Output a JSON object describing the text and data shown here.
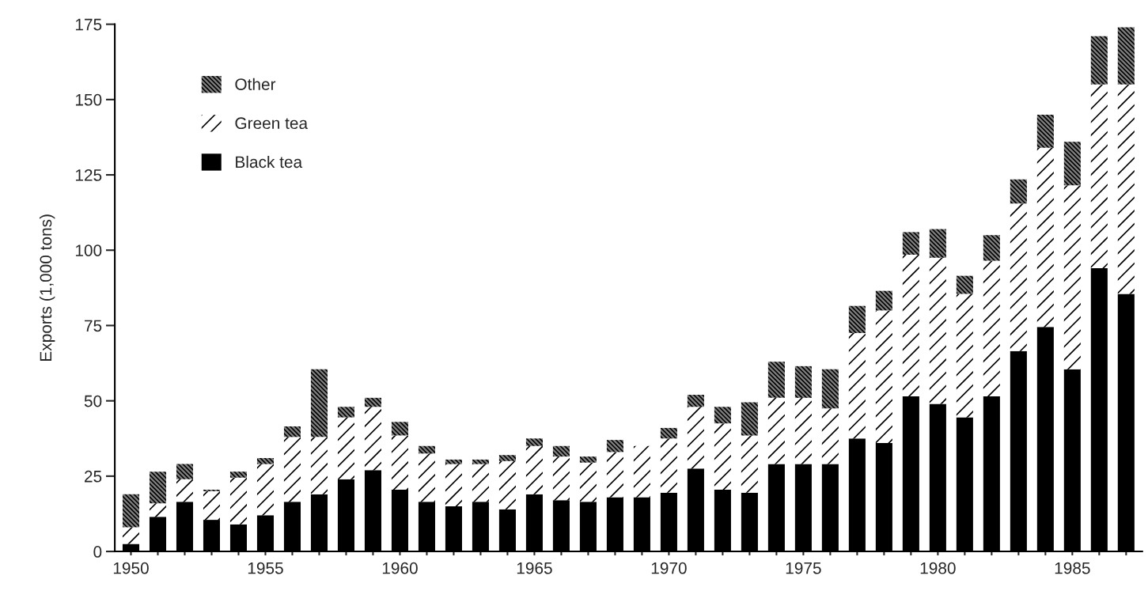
{
  "chart_data": {
    "type": "bar",
    "stacked": true,
    "ylabel": "Exports (1,000 tons)",
    "categories": [
      "1950",
      null,
      null,
      null,
      null,
      "1955",
      null,
      null,
      null,
      null,
      "1960",
      null,
      null,
      null,
      null,
      "1965",
      null,
      null,
      null,
      null,
      "1970",
      null,
      null,
      null,
      null,
      "1975",
      null,
      null,
      null,
      null,
      "1980",
      null,
      null,
      null,
      null,
      "1985",
      null,
      null
    ],
    "series": [
      {
        "name": "Black tea",
        "color": "#000000",
        "values": [
          2.5,
          11.5,
          16.5,
          10.5,
          9,
          12,
          16.5,
          19,
          24,
          27,
          20.5,
          16.5,
          15,
          16.5,
          14,
          19,
          17,
          16.5,
          18,
          18,
          19.5,
          27.5,
          20.5,
          19.5,
          29,
          29,
          29,
          37.5,
          36,
          51.5,
          49,
          44.5,
          51.5,
          66.5,
          74.5,
          60.5,
          94,
          85.5
        ]
      },
      {
        "name": "Green tea",
        "color": "#ffffff",
        "values": [
          5.5,
          4.5,
          7.5,
          9.5,
          15.5,
          17,
          21.5,
          19,
          20.5,
          21,
          18,
          16,
          14,
          12.5,
          16,
          16,
          14.5,
          13,
          15,
          17,
          18,
          20.5,
          22,
          19,
          22,
          22,
          18.5,
          35,
          44,
          47,
          48.5,
          41,
          45,
          49,
          59.5,
          61,
          61,
          69.5
        ]
      },
      {
        "name": "Other",
        "color": "#808080",
        "values": [
          11,
          10.5,
          5,
          0.5,
          2,
          2,
          3.5,
          22.5,
          3.5,
          3,
          4.5,
          2.5,
          1.5,
          1.5,
          2,
          2.5,
          3.5,
          2,
          4,
          0,
          3.5,
          4,
          5.5,
          11,
          12,
          10.5,
          13,
          9,
          6.5,
          7.5,
          9.5,
          6,
          8.5,
          8,
          11,
          14.5,
          16,
          19
        ]
      }
    ],
    "ylim": [
      0,
      175
    ],
    "yticks": [
      0,
      25,
      50,
      75,
      100,
      125,
      150,
      175
    ],
    "grid": false,
    "legend": "top left"
  }
}
